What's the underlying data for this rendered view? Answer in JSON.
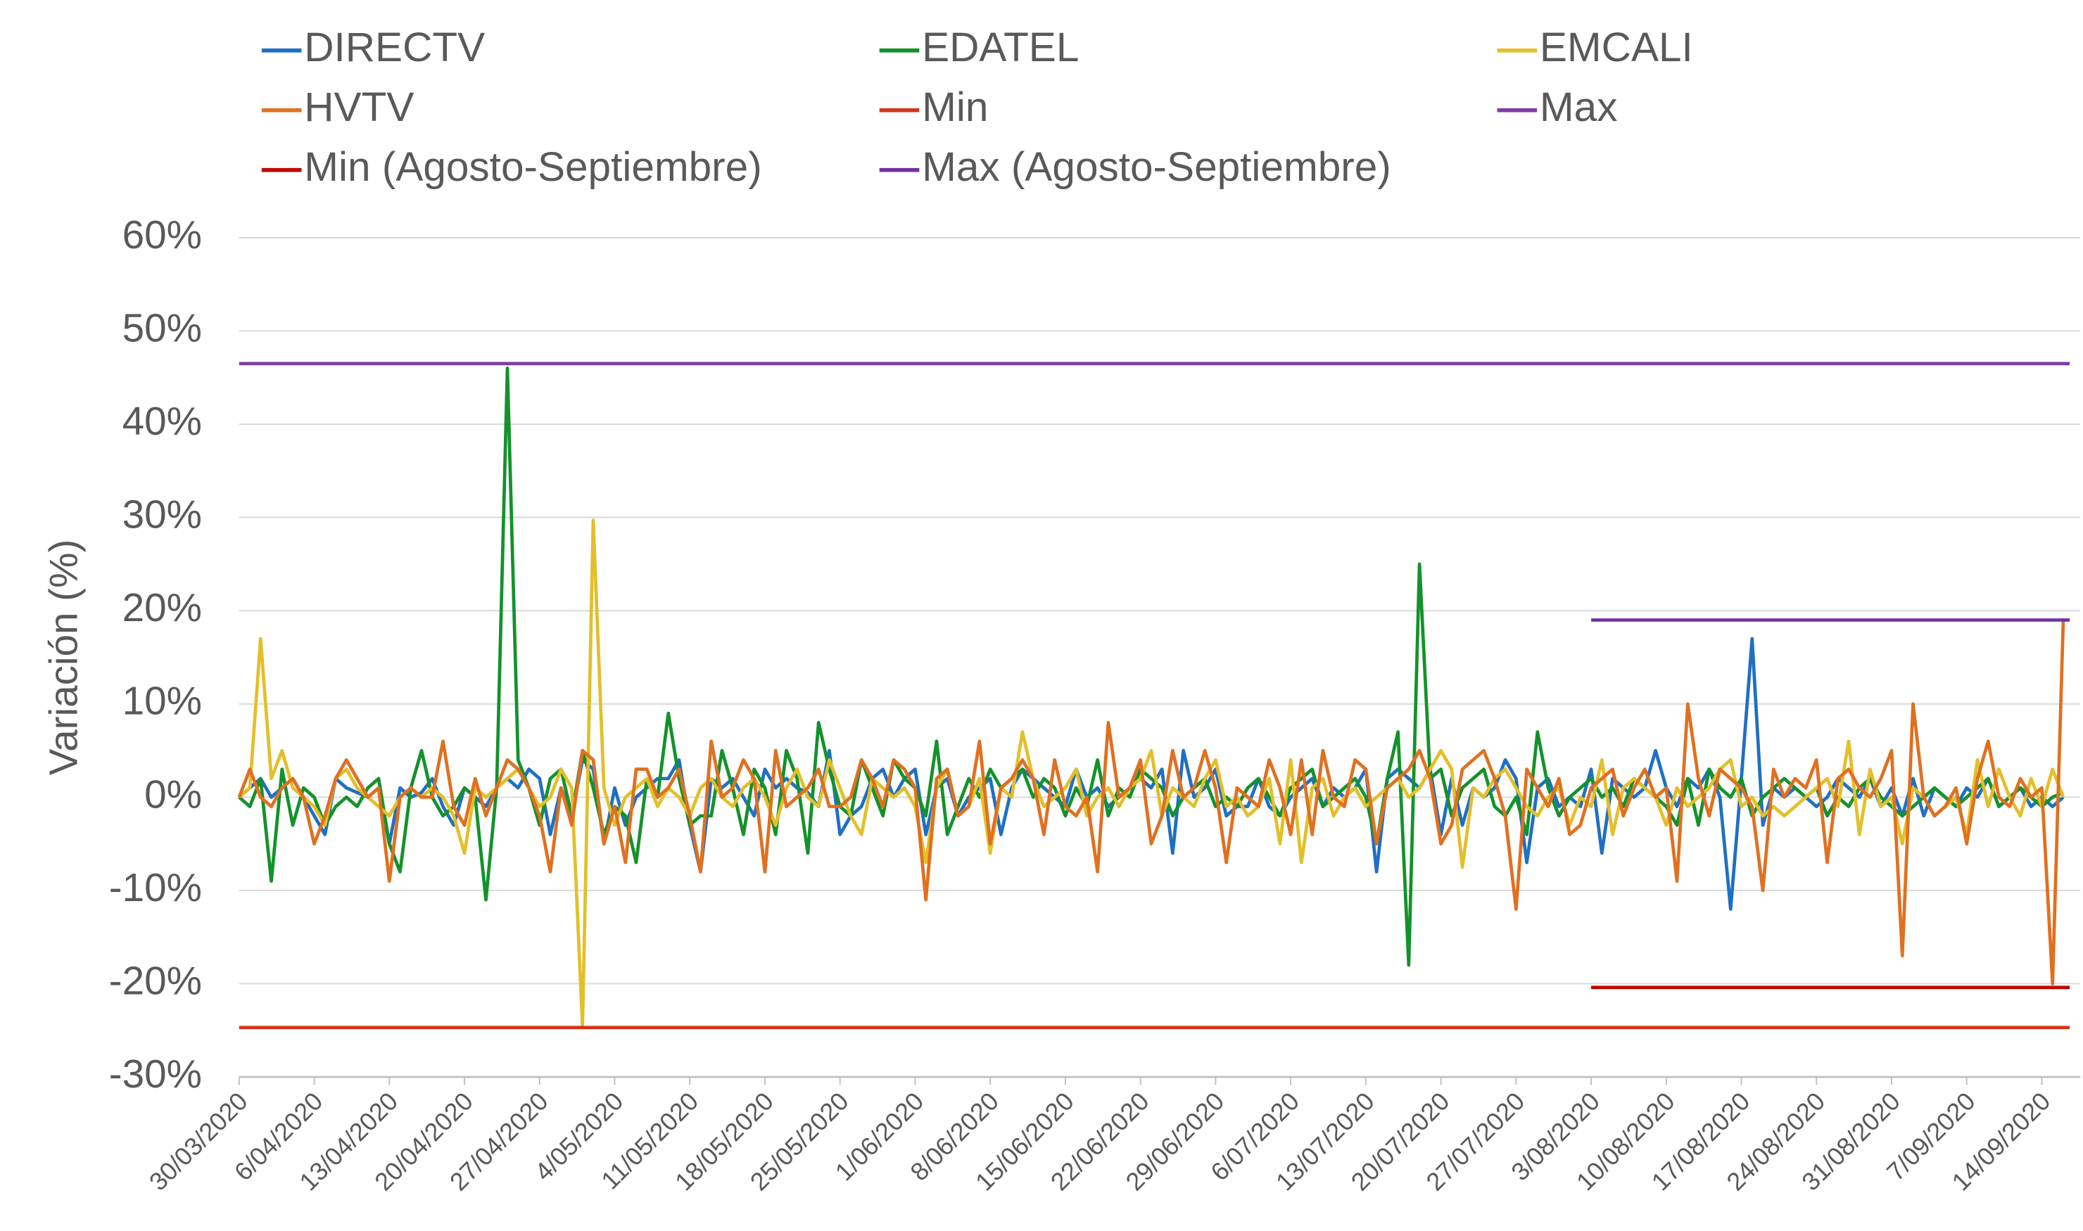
{
  "chart_data": {
    "type": "line",
    "y_label": "Variación (%)",
    "ylim": [
      -30,
      60
    ],
    "yticks": [
      {
        "value": 60,
        "label": "60%"
      },
      {
        "value": 50,
        "label": "50%"
      },
      {
        "value": 40,
        "label": "40%"
      },
      {
        "value": 30,
        "label": "30%"
      },
      {
        "value": 20,
        "label": "20%"
      },
      {
        "value": 10,
        "label": "10%"
      },
      {
        "value": 0,
        "label": "0%"
      },
      {
        "value": -10,
        "label": "-10%"
      },
      {
        "value": -20,
        "label": "-20%"
      },
      {
        "value": -30,
        "label": "-30%"
      }
    ],
    "grid": true,
    "categories": [
      "30/03/2020",
      null,
      null,
      null,
      null,
      null,
      null,
      "6/04/2020",
      null,
      null,
      null,
      null,
      null,
      null,
      "13/04/2020",
      null,
      null,
      null,
      null,
      null,
      null,
      "20/04/2020",
      null,
      null,
      null,
      null,
      null,
      null,
      "27/04/2020",
      null,
      null,
      null,
      null,
      null,
      null,
      "4/05/2020",
      null,
      null,
      null,
      null,
      null,
      null,
      "11/05/2020",
      null,
      null,
      null,
      null,
      null,
      null,
      "18/05/2020",
      null,
      null,
      null,
      null,
      null,
      null,
      "25/05/2020",
      null,
      null,
      null,
      null,
      null,
      null,
      "1/06/2020",
      null,
      null,
      null,
      null,
      null,
      null,
      "8/06/2020",
      null,
      null,
      null,
      null,
      null,
      null,
      "15/06/2020",
      null,
      null,
      null,
      null,
      null,
      null,
      "22/06/2020",
      null,
      null,
      null,
      null,
      null,
      null,
      "29/06/2020",
      null,
      null,
      null,
      null,
      null,
      null,
      "6/07/2020",
      null,
      null,
      null,
      null,
      null,
      null,
      "13/07/2020",
      null,
      null,
      null,
      null,
      null,
      null,
      "20/07/2020",
      null,
      null,
      null,
      null,
      null,
      null,
      "27/07/2020",
      null,
      null,
      null,
      null,
      null,
      null,
      "3/08/2020",
      null,
      null,
      null,
      null,
      null,
      null,
      "10/08/2020",
      null,
      null,
      null,
      null,
      null,
      null,
      "17/08/2020",
      null,
      null,
      null,
      null,
      null,
      null,
      "24/08/2020",
      null,
      null,
      null,
      null,
      null,
      null,
      "31/08/2020",
      null,
      null,
      null,
      null,
      null,
      null,
      "7/09/2020",
      null,
      null,
      null,
      null,
      null,
      null,
      "14/09/2020",
      null,
      null
    ],
    "series": [
      {
        "name": "DIRECTV",
        "color": "#1f6fc4",
        "values": [
          0,
          1,
          2,
          0,
          1,
          2,
          0,
          -2,
          -4,
          2,
          1,
          0.5,
          0,
          1,
          -5,
          1,
          0,
          0.5,
          2,
          -1,
          -3,
          1,
          0,
          -1,
          1,
          2,
          1,
          3,
          2,
          -4,
          1,
          -2,
          4,
          3,
          -5,
          1,
          -3,
          0,
          1,
          2,
          2,
          4,
          -3,
          -8,
          2,
          1,
          2,
          0,
          -2,
          3,
          1,
          2,
          1,
          0.5,
          -1,
          5,
          -4,
          -2,
          -1,
          2,
          3,
          0,
          2,
          3,
          -4,
          1,
          2,
          -2,
          0,
          1,
          2,
          -4,
          1,
          3,
          2,
          1,
          0,
          -1,
          3,
          0,
          1,
          -1,
          0,
          1,
          2,
          1,
          3,
          -6,
          5,
          0,
          1,
          3,
          -2,
          -1,
          -1,
          2,
          -1,
          -2,
          0,
          1,
          2,
          -1,
          1,
          0,
          1,
          3,
          -8,
          2,
          3,
          2,
          1,
          3,
          -4,
          2,
          -3,
          1,
          0,
          1,
          4,
          2,
          -7,
          1,
          2,
          -1,
          0,
          -1,
          3,
          -6,
          2,
          1,
          0,
          1,
          5,
          1,
          -1,
          2,
          1,
          3,
          0,
          -12,
          2,
          17,
          -3,
          1,
          0,
          1,
          0,
          -1,
          0,
          2,
          1,
          0,
          2,
          -1,
          1,
          -2,
          2,
          -2,
          1,
          0,
          -1,
          1,
          0,
          2,
          -1,
          0,
          1,
          -1,
          0,
          -1,
          0
        ]
      },
      {
        "name": "EDATEL",
        "color": "#13922b",
        "values": [
          0,
          -1,
          2,
          -9,
          3,
          -3,
          1,
          0,
          -3,
          -1,
          0,
          -1,
          1,
          2,
          -5,
          -8,
          1,
          5,
          0,
          -2,
          -1,
          1,
          0,
          -11,
          1,
          46,
          4,
          1,
          -3,
          2,
          3,
          -2,
          5,
          1,
          -4,
          -1,
          -2,
          -7,
          2,
          0,
          9,
          2,
          -3,
          -2,
          -2,
          5,
          1,
          -4,
          3,
          1,
          -4,
          5,
          2,
          -6,
          8,
          3,
          -1,
          -2,
          4,
          1,
          -2,
          4,
          2,
          1,
          -2,
          6,
          -4,
          -1,
          2,
          0,
          3,
          1,
          2,
          3,
          0,
          2,
          1,
          -2,
          1,
          -1,
          4,
          -2,
          1,
          0,
          3,
          2,
          1,
          -2,
          0,
          1,
          2,
          -1,
          0,
          -1,
          1,
          2,
          0,
          -2,
          1,
          2,
          3,
          -1,
          0,
          1,
          2,
          0,
          -5,
          2,
          7,
          -18,
          25,
          2,
          3,
          -2,
          1,
          2,
          3,
          -1,
          -2,
          0,
          -4,
          7,
          1,
          -2,
          0,
          1,
          2,
          0,
          1,
          -1,
          2,
          1,
          0,
          -1,
          -3,
          2,
          -3,
          3,
          1,
          0,
          2,
          -2,
          0,
          1,
          2,
          1,
          0,
          1,
          -2,
          0,
          -1,
          1,
          2,
          0,
          -1,
          -2,
          -1,
          0,
          1,
          0,
          -1,
          0,
          1,
          2,
          -1,
          0,
          1,
          0,
          -1,
          0,
          0.5
        ]
      },
      {
        "name": "EMCALI",
        "color": "#e3bf2a",
        "values": [
          0,
          1,
          17,
          2,
          5,
          1,
          0,
          -1,
          -3,
          2,
          3,
          1,
          0,
          -1,
          -2,
          0,
          1,
          0,
          1,
          0,
          -2,
          -6,
          1,
          0,
          1,
          2,
          3,
          1,
          -1,
          0,
          3,
          1,
          -24.5,
          29.7,
          1,
          -3,
          0,
          1,
          2,
          -1,
          1,
          0,
          -2,
          1,
          2,
          0,
          -1,
          1,
          2,
          0,
          -3,
          1,
          3,
          0,
          -1,
          4,
          1,
          -2,
          -4,
          2,
          1,
          0,
          1,
          -1,
          -7,
          1,
          3,
          -2,
          -1,
          2,
          -6,
          1,
          0,
          7,
          2,
          -1,
          0,
          1,
          3,
          -2,
          0,
          1,
          -1,
          1,
          2,
          5,
          -2,
          1,
          0,
          -1,
          2,
          4,
          -1,
          0,
          -2,
          -1,
          2,
          -5,
          4,
          -7,
          1,
          2,
          -2,
          0,
          1,
          -1,
          0,
          1,
          2,
          0,
          1,
          3,
          5,
          3,
          -7.5,
          1,
          0,
          2,
          3,
          1,
          -1,
          -2,
          0,
          1,
          -3,
          0,
          -1,
          4,
          -4,
          1,
          2,
          1,
          0,
          -3,
          1,
          -1,
          0,
          1,
          3,
          4,
          -1,
          0,
          -2,
          -1,
          -2,
          -1,
          0,
          1,
          2,
          -1,
          6,
          -4,
          3,
          -1,
          0,
          -5,
          1,
          0,
          -2,
          -1,
          0,
          -4,
          4,
          -1,
          3,
          0,
          -2,
          2,
          -1,
          3,
          0
        ]
      },
      {
        "name": "HVTV",
        "color": "#e07020",
        "values": [
          0,
          3,
          0,
          -1,
          1,
          2,
          0,
          -5,
          -2,
          2,
          4,
          2,
          0,
          1,
          -9,
          0,
          1,
          0,
          0,
          6,
          -1,
          -3,
          2,
          -2,
          1,
          4,
          3,
          1,
          -2,
          -8,
          1,
          -3,
          5,
          4,
          -5,
          -1,
          -7,
          3,
          3,
          0,
          1,
          3,
          -2,
          -8,
          6,
          0,
          1,
          4,
          2,
          -8,
          5,
          -1,
          0,
          1,
          3,
          -1,
          -1,
          0,
          4,
          2,
          -1,
          4,
          3,
          1,
          -11,
          2,
          3,
          -2,
          -1,
          6,
          -5,
          1,
          2,
          4,
          2,
          -4,
          4,
          -1,
          -2,
          0,
          -8,
          8,
          0,
          1,
          4,
          -5,
          -2,
          5,
          0,
          1,
          5,
          1,
          -7,
          1,
          0,
          -1,
          4,
          1,
          -4,
          4,
          -4,
          5,
          0,
          -1,
          4,
          3,
          -5,
          1,
          2,
          3,
          5,
          2,
          -5,
          -3,
          3,
          4,
          5,
          2,
          -2,
          -12,
          3,
          1,
          -1,
          2,
          -4,
          -3,
          1,
          2,
          3,
          -2,
          1,
          3,
          0,
          1,
          -9,
          10,
          2,
          -2,
          3,
          2,
          1,
          -1,
          -10,
          3,
          0,
          2,
          1,
          4,
          -7,
          2,
          3,
          1,
          0,
          2,
          5,
          -17,
          10,
          0,
          -2,
          -1,
          1,
          -5,
          2,
          6,
          0,
          -1,
          2,
          0,
          1,
          -20,
          19
        ]
      }
    ],
    "lines": [
      {
        "name": "Min",
        "color": "#d4351c",
        "value": -24.7,
        "from": "30/03/2020"
      },
      {
        "name": "Max",
        "color": "#7d3ca8",
        "value": 46.5,
        "from": "30/03/2020"
      },
      {
        "name": "Min (Agosto-Septiembre)",
        "color": "#c00000",
        "value": -20.4,
        "from": "3/08/2020"
      },
      {
        "name": "Max (Agosto-Septiembre)",
        "color": "#7030a0",
        "value": 19,
        "from": "3/08/2020"
      }
    ]
  }
}
